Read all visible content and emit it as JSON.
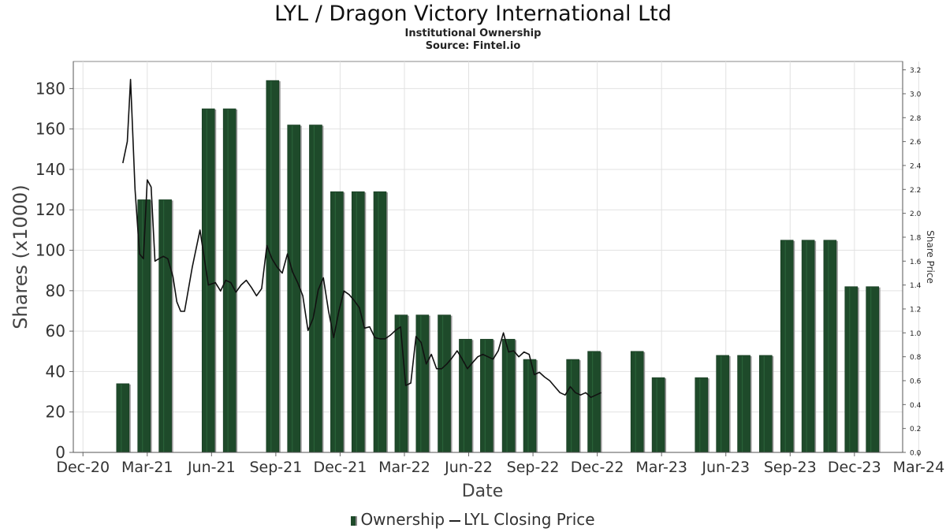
{
  "chart_data": {
    "type": "bar",
    "title": "LYL / Dragon Victory International Ltd",
    "subtitle": "Institutional Ownership",
    "source": "Source: Fintel.io",
    "xlabel": "Date",
    "ylabel": "Shares (x1000)",
    "y2label": "Share Price",
    "x_ticks": [
      "Dec-20",
      "Mar-21",
      "Jun-21",
      "Sep-21",
      "Dec-21",
      "Mar-22",
      "Jun-22",
      "Sep-22",
      "Dec-22",
      "Mar-23",
      "Jun-23",
      "Sep-23",
      "Dec-23",
      "Mar-24"
    ],
    "x_range": [
      -0.15,
      12.75
    ],
    "y_ticks": [
      0,
      20,
      40,
      60,
      80,
      100,
      120,
      140,
      160,
      180
    ],
    "ylim": [
      0,
      193.4
    ],
    "y2_ticks": [
      "0.0",
      "0.2",
      "0.4",
      "0.6",
      "0.8",
      "1.0",
      "1.2",
      "1.4",
      "1.6",
      "1.8",
      "2.0",
      "2.2",
      "2.4",
      "2.6",
      "2.8",
      "3.0",
      "3.2"
    ],
    "y2lim": [
      0,
      3.27
    ],
    "grid": true,
    "legend": [
      "Ownership",
      "LYL Closing Price"
    ],
    "series": [
      {
        "name": "Ownership",
        "type": "bar",
        "x": [
          0.62,
          0.95,
          1.28,
          1.95,
          2.28,
          2.95,
          3.28,
          3.62,
          3.95,
          4.28,
          4.62,
          4.95,
          5.28,
          5.62,
          5.95,
          6.28,
          6.62,
          6.95,
          7.62,
          7.95,
          8.62,
          8.95,
          9.62,
          9.95,
          10.28,
          10.62,
          10.95,
          11.28,
          11.62,
          11.95,
          12.28
        ],
        "values": [
          34,
          125,
          125,
          170,
          170,
          184,
          162,
          162,
          129,
          129,
          129,
          68,
          68,
          68,
          56,
          56,
          56,
          46,
          46,
          50,
          50,
          37,
          37,
          48,
          48,
          48,
          105,
          105,
          105,
          82,
          82
        ]
      },
      {
        "name": "LYL Closing Price",
        "type": "line",
        "x": [
          0.62,
          0.69,
          0.74,
          0.81,
          0.88,
          0.94,
          1.0,
          1.06,
          1.12,
          1.18,
          1.25,
          1.32,
          1.4,
          1.46,
          1.52,
          1.58,
          1.7,
          1.82,
          1.95,
          2.06,
          2.14,
          2.22,
          2.3,
          2.38,
          2.46,
          2.54,
          2.62,
          2.7,
          2.78,
          2.86,
          2.94,
          3.02,
          3.1,
          3.18,
          3.26,
          3.34,
          3.42,
          3.5,
          3.58,
          3.66,
          3.74,
          3.82,
          3.9,
          3.98,
          4.06,
          4.14,
          4.22,
          4.3,
          4.38,
          4.46,
          4.54,
          4.62,
          4.7,
          4.78,
          4.86,
          4.94,
          5.02,
          5.1,
          5.18,
          5.26,
          5.34,
          5.42,
          5.5,
          5.58,
          5.66,
          5.74,
          5.82,
          5.9,
          5.98,
          6.06,
          6.14,
          6.22,
          6.3,
          6.38,
          6.46,
          6.54,
          6.62,
          6.7,
          6.78,
          6.86,
          6.94,
          7.02,
          7.1,
          7.18,
          7.26,
          7.34,
          7.42,
          7.5,
          7.58,
          7.66,
          7.74,
          7.82,
          7.9,
          7.98,
          8.06
        ],
        "values": [
          2.42,
          2.6,
          3.12,
          2.2,
          1.66,
          1.62,
          2.28,
          2.22,
          1.6,
          1.62,
          1.64,
          1.62,
          1.47,
          1.26,
          1.18,
          1.18,
          1.55,
          1.86,
          1.4,
          1.42,
          1.35,
          1.44,
          1.42,
          1.34,
          1.4,
          1.44,
          1.38,
          1.31,
          1.37,
          1.73,
          1.62,
          1.55,
          1.5,
          1.66,
          1.51,
          1.42,
          1.31,
          1.02,
          1.12,
          1.36,
          1.46,
          1.18,
          0.96,
          1.18,
          1.35,
          1.32,
          1.27,
          1.21,
          1.04,
          1.05,
          0.96,
          0.95,
          0.95,
          0.98,
          1.02,
          1.05,
          0.56,
          0.58,
          0.97,
          0.92,
          0.74,
          0.82,
          0.7,
          0.7,
          0.74,
          0.79,
          0.85,
          0.78,
          0.7,
          0.75,
          0.8,
          0.82,
          0.8,
          0.78,
          0.85,
          1.0,
          0.84,
          0.85,
          0.8,
          0.84,
          0.82,
          0.65,
          0.67,
          0.63,
          0.6,
          0.55,
          0.5,
          0.48,
          0.55,
          0.5,
          0.48,
          0.5,
          0.46,
          0.48,
          0.5
        ]
      }
    ]
  }
}
